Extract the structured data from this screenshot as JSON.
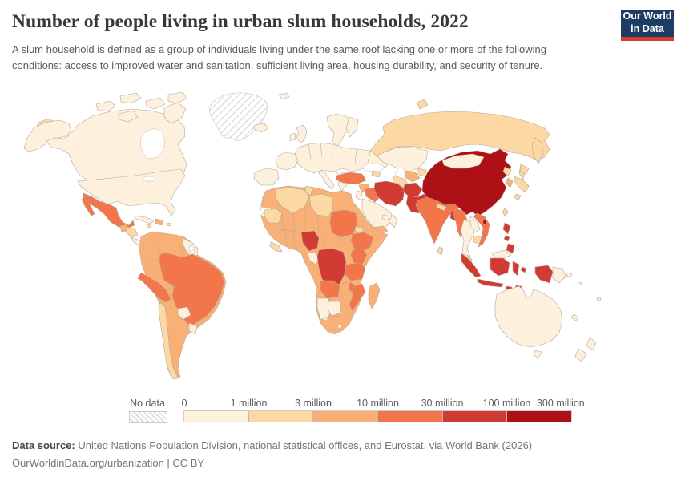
{
  "header": {
    "title": "Number of people living in urban slum households, 2022",
    "subtitle": "A slum household is defined as a group of individuals living under the same roof lacking one or more of the following conditions: access to improved water and sanitation, sufficient living area, housing durability, and security of tenure.",
    "logo": {
      "line1": "Our World",
      "line2": "in Data",
      "bg": "#1d3d63",
      "accent": "#d73c32"
    }
  },
  "legend": {
    "no_data_label": "No data",
    "tick_labels": [
      "0",
      "1 million",
      "3 million",
      "10 million",
      "30 million",
      "100 million",
      "300 million"
    ],
    "bin_colors": [
      "#fdf0dd",
      "#fbd8a4",
      "#f8b077",
      "#f3764a",
      "#d23b33",
      "#ad1015"
    ],
    "no_data_pattern": "diagonal-hatch"
  },
  "footer": {
    "source_label": "Data source:",
    "source_text": " United Nations Population Division, national statistical offices, and Eurostat, via World Bank (2026)",
    "citation": "OurWorldinData.org/urbanization | CC BY"
  },
  "chart_data": {
    "type": "choropleth_map",
    "title": "Number of people living in urban slum households",
    "year": 2022,
    "unit": "people living in urban slum households",
    "projection": "world (Robinson-like), white ocean",
    "legend_position": "bottom",
    "bins": [
      {
        "label": "0 – 1 million",
        "color": "#fdf0dd"
      },
      {
        "label": "1 – 3 million",
        "color": "#fbd8a4"
      },
      {
        "label": "3 – 10 million",
        "color": "#f8b077"
      },
      {
        "label": "10 – 30 million",
        "color": "#f3764a"
      },
      {
        "label": "30 – 100 million",
        "color": "#d23b33"
      },
      {
        "label": "100 – 300 million",
        "color": "#ad1015"
      }
    ],
    "country_bins": {
      "China": "100-300 million",
      "Nigeria": "30-100 million",
      "DR Congo": "30-100 million",
      "Iran": "30-100 million",
      "Pakistan": "30-100 million",
      "Afghanistan": "30-100 million",
      "Bangladesh": "30-100 million",
      "Indonesia": "30-100 million",
      "Philippines": "30-100 million",
      "Mexico": "10-30 million",
      "Brazil": "10-30 million",
      "Peru": "10-30 million",
      "India": "10-30 million",
      "Turkey": "10-30 million",
      "Iraq": "10-30 million",
      "Sudan": "10-30 million",
      "Ethiopia": "10-30 million",
      "Kenya": "10-30 million",
      "Tanzania": "10-30 million",
      "Angola": "10-30 million",
      "Mozambique": "10-30 million",
      "Myanmar": "10-30 million",
      "Vietnam": "10-30 million",
      "Colombia": "3-10 million",
      "Venezuela": "3-10 million",
      "Ecuador": "3-10 million",
      "Bolivia": "3-10 million",
      "Argentina": "3-10 million",
      "Morocco": "3-10 million",
      "Egypt": "3-10 million",
      "Mali": "3-10 million",
      "Niger": "3-10 million",
      "Chad": "3-10 million",
      "Ghana": "3-10 million",
      "Guatemala": "3-10 million",
      "Haiti": "3-10 million",
      "Somalia": "3-10 million",
      "Madagascar": "3-10 million",
      "South Africa": "3-10 million",
      "Yemen": "3-10 million",
      "Syria": "3-10 million",
      "Uzbekistan": "3-10 million",
      "South Korea": "3-10 million",
      "Russia": "1-3 million",
      "Chile": "1-3 million",
      "Algeria": "1-3 million",
      "Libya": "1-3 million",
      "Mauritania": "1-3 million",
      "Japan": "1-3 million",
      "Nepal": "1-3 million",
      "Sri Lanka": "1-3 million",
      "Cambodia": "1-3 million",
      "United States": "0-1 million",
      "Canada": "0-1 million",
      "Australia": "0-1 million",
      "Europe (most countries)": "0-1 million",
      "Saudi Arabia": "0-1 million",
      "Kazakhstan": "0-1 million",
      "Mongolia": "0-1 million",
      "Thailand": "0-1 million",
      "Paraguay": "0-1 million",
      "Uruguay": "0-1 million",
      "Namibia": "0-1 million",
      "Botswana": "0-1 million",
      "New Zealand": "0-1 million",
      "Papua New Guinea": "0-1 million"
    },
    "no_data_regions": [
      "Greenland",
      "Western Sahara",
      "Suriname"
    ]
  }
}
